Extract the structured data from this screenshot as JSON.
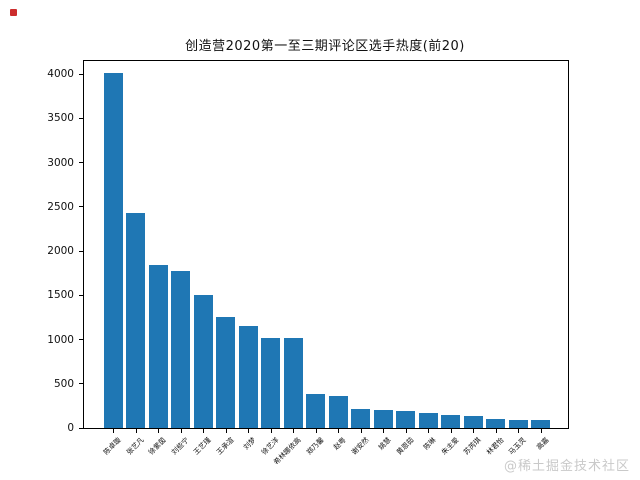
{
  "page": {
    "watermark": "@稀土掘金技术社区"
  },
  "chart_data": {
    "type": "bar",
    "title": "创造营2020第一至三期评论区选手热度(前20)",
    "xlabel": "",
    "ylabel": "",
    "categories": [
      "陈卓璇",
      "张艺凡",
      "徐紫茵",
      "刘些宁",
      "王艺瑾",
      "王承渲",
      "刘梦",
      "徐艺洋",
      "希林娜依高",
      "郑乃馨",
      "赵粤",
      "谢安然",
      "姚慧",
      "黄恩茹",
      "陈琳",
      "朱主爱",
      "苏芮琪",
      "林君怡",
      "马玉灵",
      "高嘉"
    ],
    "values": [
      4010,
      2430,
      1840,
      1780,
      1500,
      1250,
      1150,
      1020,
      1015,
      385,
      365,
      215,
      200,
      195,
      165,
      150,
      140,
      105,
      90,
      85
    ],
    "yticks": [
      0,
      500,
      1000,
      1500,
      2000,
      2500,
      3000,
      3500,
      4000
    ],
    "ylim": [
      0,
      4150
    ],
    "grid": false,
    "legend": "none",
    "bar_color": "#1f77b4"
  }
}
